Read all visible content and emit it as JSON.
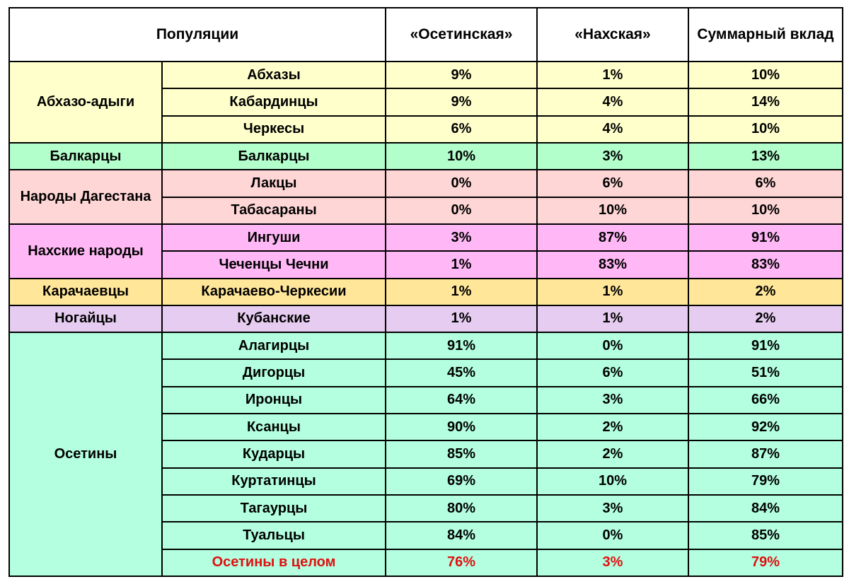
{
  "table": {
    "headers": {
      "populations": "Популяции",
      "ossetian": "«Осетинская»",
      "nakh": "«Нахская»",
      "total": "Суммарный вклад"
    },
    "groups": [
      {
        "name": "Абхазо-адыги",
        "color": "#ffffcc",
        "rows": [
          {
            "population": "Абхазы",
            "ossetian": "9%",
            "nakh": "1%",
            "total": "10%"
          },
          {
            "population": "Кабардинцы",
            "ossetian": "9%",
            "nakh": "4%",
            "total": "14%"
          },
          {
            "population": "Черкесы",
            "ossetian": "6%",
            "nakh": "4%",
            "total": "10%"
          }
        ]
      },
      {
        "name": "Балкарцы",
        "color": "#b3ffcc",
        "rows": [
          {
            "population": "Балкарцы",
            "ossetian": "10%",
            "nakh": "3%",
            "total": "13%"
          }
        ]
      },
      {
        "name": "Народы Дагестана",
        "color": "#ffd6d6",
        "rows": [
          {
            "population": "Лакцы",
            "ossetian": "0%",
            "nakh": "6%",
            "total": "6%"
          },
          {
            "population": "Табасараны",
            "ossetian": "0%",
            "nakh": "10%",
            "total": "10%"
          }
        ]
      },
      {
        "name": "Нахские народы",
        "color": "#ffb8f5",
        "rows": [
          {
            "population": "Ингуши",
            "ossetian": "3%",
            "nakh": "87%",
            "total": "91%"
          },
          {
            "population": "Чеченцы Чечни",
            "ossetian": "1%",
            "nakh": "83%",
            "total": "83%"
          }
        ]
      },
      {
        "name": "Карачаевцы",
        "color": "#ffe699",
        "rows": [
          {
            "population": "Карачаево-Черкесии",
            "ossetian": "1%",
            "nakh": "1%",
            "total": "2%"
          }
        ]
      },
      {
        "name": "Ногайцы",
        "color": "#e6ccf0",
        "rows": [
          {
            "population": "Кубанские",
            "ossetian": "1%",
            "nakh": "1%",
            "total": "2%"
          }
        ]
      },
      {
        "name": "Осетины",
        "color": "#b3ffe0",
        "rows": [
          {
            "population": "Алагирцы",
            "ossetian": "91%",
            "nakh": "0%",
            "total": "91%"
          },
          {
            "population": "Дигорцы",
            "ossetian": "45%",
            "nakh": "6%",
            "total": "51%"
          },
          {
            "population": "Иронцы",
            "ossetian": "64%",
            "nakh": "3%",
            "total": "66%"
          },
          {
            "population": "Ксанцы",
            "ossetian": "90%",
            "nakh": "2%",
            "total": "92%"
          },
          {
            "population": "Кударцы",
            "ossetian": "85%",
            "nakh": "2%",
            "total": "87%"
          },
          {
            "population": "Куртатинцы",
            "ossetian": "69%",
            "nakh": "10%",
            "total": "79%"
          },
          {
            "population": "Тагаурцы",
            "ossetian": "80%",
            "nakh": "3%",
            "total": "84%"
          },
          {
            "population": "Туальцы",
            "ossetian": "84%",
            "nakh": "0%",
            "total": "85%"
          },
          {
            "population": "Осетины в целом",
            "ossetian": "76%",
            "nakh": "3%",
            "total": "79%",
            "highlight": "#e01010"
          }
        ]
      }
    ]
  }
}
